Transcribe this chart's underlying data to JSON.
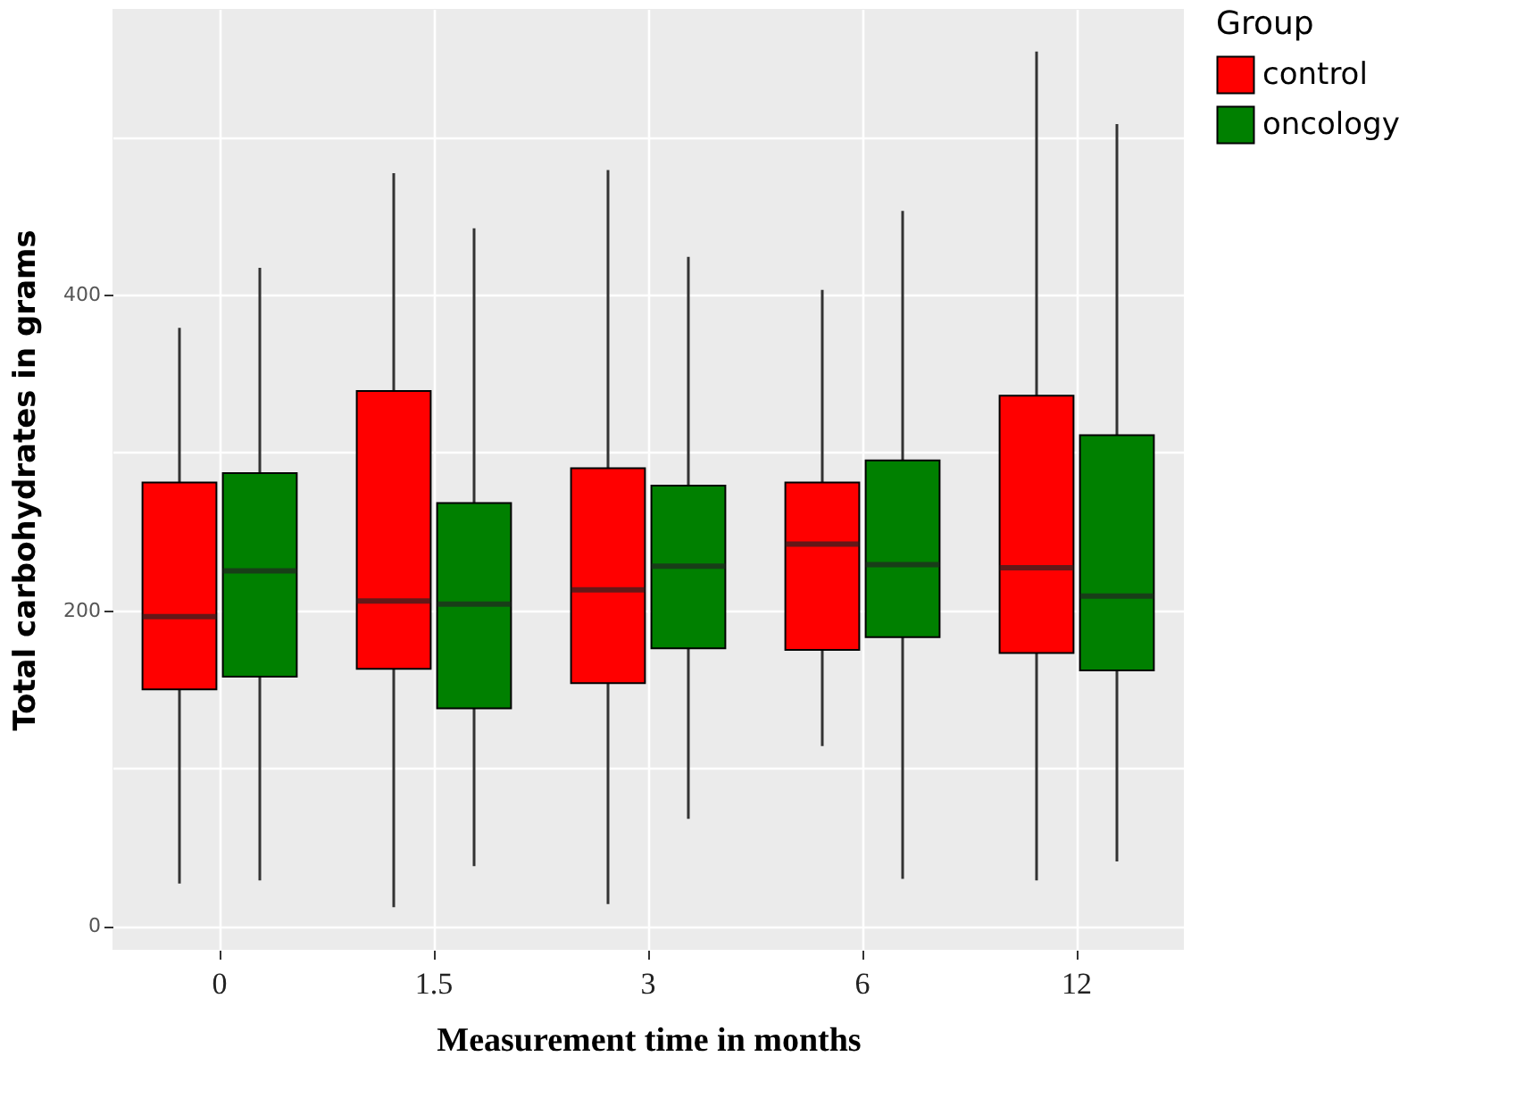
{
  "chart_data": {
    "type": "box",
    "xlabel": "Measurement time in months",
    "ylabel": "Total carbohydrates in grams",
    "legend_title": "Group",
    "categories": [
      "0",
      "1.5",
      "3",
      "6",
      "12"
    ],
    "ylim": [
      -15,
      581
    ],
    "yticks": [
      0,
      {
        "value": 100,
        "label": null
      },
      200,
      {
        "value": 300,
        "label": null
      },
      400,
      {
        "value": 500,
        "label": null
      }
    ],
    "grid": true,
    "legend": "right",
    "series": [
      {
        "name": "control",
        "color": "#ff0000",
        "boxes": [
          {
            "low": 27,
            "q1": 150,
            "median": 196,
            "q3": 281,
            "high": 379
          },
          {
            "low": 12,
            "q1": 163,
            "median": 206,
            "q3": 339,
            "high": 477
          },
          {
            "low": 14,
            "q1": 154,
            "median": 213,
            "q3": 290,
            "high": 479
          },
          {
            "low": 114,
            "q1": 175,
            "median": 242,
            "q3": 281,
            "high": 403
          },
          {
            "low": 29,
            "q1": 173,
            "median": 227,
            "q3": 336,
            "high": 554
          }
        ]
      },
      {
        "name": "oncology",
        "color": "#008000",
        "boxes": [
          {
            "low": 29,
            "q1": 158,
            "median": 225,
            "q3": 287,
            "high": 417
          },
          {
            "low": 38,
            "q1": 138,
            "median": 204,
            "q3": 268,
            "high": 442
          },
          {
            "low": 68,
            "q1": 176,
            "median": 228,
            "q3": 279,
            "high": 424
          },
          {
            "low": 30,
            "q1": 183,
            "median": 229,
            "q3": 295,
            "high": 453
          },
          {
            "low": 41,
            "q1": 162,
            "median": 209,
            "q3": 311,
            "high": 508
          }
        ]
      }
    ]
  }
}
